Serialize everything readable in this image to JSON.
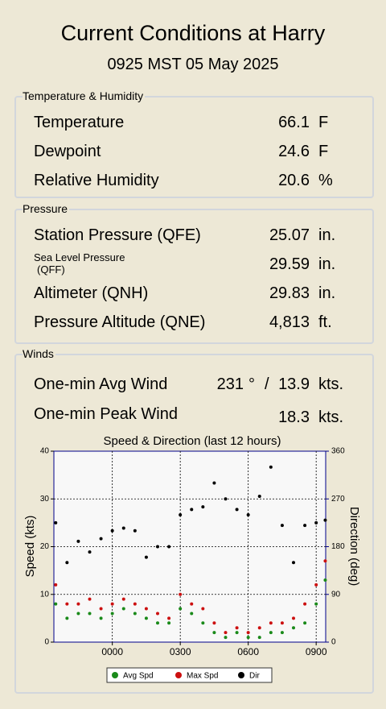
{
  "header": {
    "title": "Current Conditions at Harry",
    "subtitle": "0925 MST 05 May 2025"
  },
  "temperature_humidity": {
    "title": "Temperature & Humidity",
    "rows": [
      {
        "label": "Temperature",
        "value": 66.1,
        "unit": "F"
      },
      {
        "label": "Dewpoint",
        "value": 24.6,
        "unit": "F"
      },
      {
        "label": "Relative Humidity",
        "value": 20.6,
        "unit": "%"
      }
    ]
  },
  "pressure": {
    "title": "Pressure",
    "rows": [
      {
        "label": "Station Pressure (QFE)",
        "value": 25.07,
        "unit": "in."
      },
      {
        "label_lines": [
          "Sea Level Pressure",
          "(QFF)"
        ],
        "value": 29.59,
        "unit": "in."
      },
      {
        "label": "Altimeter (QNH)",
        "value": 29.83,
        "unit": "in."
      },
      {
        "label": "Pressure Altitude (QNE)",
        "value": "4,813",
        "unit": "ft."
      }
    ]
  },
  "winds": {
    "title": "Winds",
    "avg": {
      "label": "One-min Avg Wind",
      "direction": 231,
      "direction_unit": "°",
      "separator": "/",
      "speed": 13.9,
      "unit": "kts."
    },
    "peak": {
      "label": "One-min Peak Wind",
      "speed": 18.3,
      "unit": "kts."
    }
  },
  "chart_data": {
    "type": "scatter",
    "title": "Speed & Direction (last 12 hours)",
    "y_label": "Speed (kts)",
    "y2_label": "Direction (deg)",
    "xlim": [
      -2.58,
      9.42
    ],
    "xticks": [
      {
        "value": 0,
        "label": "0000"
      },
      {
        "value": 3,
        "label": "0300"
      },
      {
        "value": 6,
        "label": "0600"
      },
      {
        "value": 9,
        "label": "0900"
      }
    ],
    "ylim": [
      0,
      40
    ],
    "yticks": [
      0,
      10,
      20,
      30,
      40
    ],
    "y2lim": [
      0,
      360
    ],
    "y2ticks": [
      0,
      90,
      180,
      270,
      360
    ],
    "grid": true,
    "x": [
      -2.5,
      -2,
      -1.5,
      -1,
      -0.5,
      0,
      0.5,
      1,
      1.5,
      2,
      2.5,
      3,
      3.5,
      4,
      4.5,
      5,
      5.5,
      6,
      6.5,
      7,
      7.5,
      8,
      8.5,
      9,
      9.4
    ],
    "series": [
      {
        "name": "Avg Spd",
        "color": "#1a8a1a",
        "values": [
          8,
          5,
          6,
          6,
          5,
          6,
          7,
          6,
          5,
          4,
          4,
          7,
          6,
          4,
          2,
          1,
          2,
          1,
          1,
          2,
          2,
          3,
          4,
          8,
          13
        ]
      },
      {
        "name": "Max Spd",
        "color": "#cc1010",
        "values": [
          12,
          8,
          8,
          9,
          7,
          8,
          9,
          8,
          7,
          6,
          5,
          10,
          8,
          7,
          4,
          2,
          3,
          2,
          3,
          4,
          4,
          5,
          8,
          12,
          17
        ]
      },
      {
        "name": "Dir",
        "color": "#000000",
        "axis": "y2",
        "values": [
          225,
          150,
          190,
          170,
          195,
          210,
          215,
          210,
          160,
          180,
          180,
          240,
          250,
          255,
          300,
          270,
          250,
          240,
          275,
          330,
          220,
          150,
          220,
          225,
          230
        ]
      }
    ]
  }
}
